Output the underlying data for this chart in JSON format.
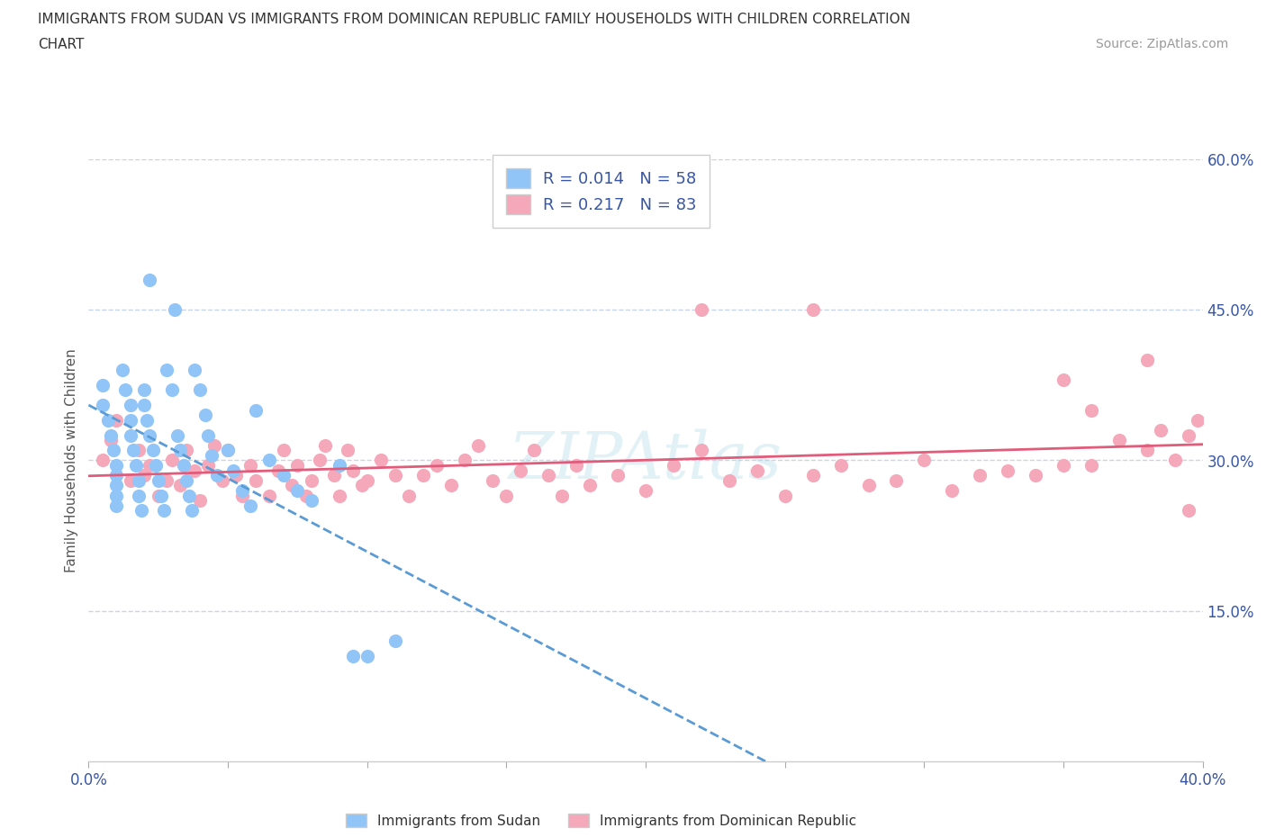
{
  "title_line1": "IMMIGRANTS FROM SUDAN VS IMMIGRANTS FROM DOMINICAN REPUBLIC FAMILY HOUSEHOLDS WITH CHILDREN CORRELATION",
  "title_line2": "CHART",
  "source_text": "Source: ZipAtlas.com",
  "ylabel": "Family Households with Children",
  "xlim": [
    0.0,
    0.4
  ],
  "ylim": [
    0.0,
    0.6
  ],
  "yticks_right": [
    0.0,
    0.15,
    0.3,
    0.45,
    0.6
  ],
  "ytick_labels_right": [
    "",
    "15.0%",
    "30.0%",
    "45.0%",
    "60.0%"
  ],
  "color_sudan": "#92c5f7",
  "color_dr": "#f4a8ba",
  "color_sudan_line": "#5b9bd5",
  "color_dr_line": "#e05c7a",
  "legend_color": "#3956a3",
  "text_color": "#3956a3",
  "R_sudan": 0.014,
  "N_sudan": 58,
  "R_dr": 0.217,
  "N_dr": 83,
  "grid_color": "#c8d4e8",
  "background_color": "#ffffff",
  "watermark": "ZIPAtlas",
  "sudan_x": [
    0.005,
    0.005,
    0.007,
    0.008,
    0.009,
    0.01,
    0.01,
    0.01,
    0.01,
    0.01,
    0.012,
    0.013,
    0.015,
    0.015,
    0.015,
    0.016,
    0.017,
    0.018,
    0.018,
    0.019,
    0.02,
    0.02,
    0.021,
    0.022,
    0.022,
    0.023,
    0.024,
    0.025,
    0.026,
    0.027,
    0.028,
    0.03,
    0.031,
    0.032,
    0.033,
    0.034,
    0.035,
    0.036,
    0.037,
    0.038,
    0.04,
    0.042,
    0.043,
    0.044,
    0.046,
    0.05,
    0.052,
    0.055,
    0.058,
    0.06,
    0.065,
    0.07,
    0.075,
    0.08,
    0.09,
    0.095,
    0.1,
    0.11
  ],
  "sudan_y": [
    0.375,
    0.355,
    0.34,
    0.325,
    0.31,
    0.295,
    0.285,
    0.275,
    0.265,
    0.255,
    0.39,
    0.37,
    0.355,
    0.34,
    0.325,
    0.31,
    0.295,
    0.28,
    0.265,
    0.25,
    0.37,
    0.355,
    0.34,
    0.48,
    0.325,
    0.31,
    0.295,
    0.28,
    0.265,
    0.25,
    0.39,
    0.37,
    0.45,
    0.325,
    0.31,
    0.295,
    0.28,
    0.265,
    0.25,
    0.39,
    0.37,
    0.345,
    0.325,
    0.305,
    0.285,
    0.31,
    0.29,
    0.27,
    0.255,
    0.35,
    0.3,
    0.285,
    0.27,
    0.26,
    0.295,
    0.105,
    0.105,
    0.12
  ],
  "dr_x": [
    0.005,
    0.008,
    0.01,
    0.015,
    0.018,
    0.02,
    0.022,
    0.025,
    0.028,
    0.03,
    0.033,
    0.035,
    0.038,
    0.04,
    0.043,
    0.045,
    0.048,
    0.05,
    0.053,
    0.055,
    0.058,
    0.06,
    0.065,
    0.068,
    0.07,
    0.073,
    0.075,
    0.078,
    0.08,
    0.083,
    0.085,
    0.088,
    0.09,
    0.093,
    0.095,
    0.098,
    0.1,
    0.105,
    0.11,
    0.115,
    0.12,
    0.125,
    0.13,
    0.135,
    0.14,
    0.145,
    0.15,
    0.155,
    0.16,
    0.165,
    0.17,
    0.175,
    0.18,
    0.19,
    0.2,
    0.21,
    0.22,
    0.23,
    0.24,
    0.25,
    0.26,
    0.27,
    0.28,
    0.29,
    0.3,
    0.31,
    0.32,
    0.33,
    0.34,
    0.35,
    0.36,
    0.37,
    0.38,
    0.385,
    0.39,
    0.395,
    0.398,
    0.22,
    0.26,
    0.35,
    0.36,
    0.38,
    0.395
  ],
  "dr_y": [
    0.3,
    0.32,
    0.34,
    0.28,
    0.31,
    0.285,
    0.295,
    0.265,
    0.28,
    0.3,
    0.275,
    0.31,
    0.29,
    0.26,
    0.295,
    0.315,
    0.28,
    0.31,
    0.285,
    0.265,
    0.295,
    0.28,
    0.265,
    0.29,
    0.31,
    0.275,
    0.295,
    0.265,
    0.28,
    0.3,
    0.315,
    0.285,
    0.265,
    0.31,
    0.29,
    0.275,
    0.28,
    0.3,
    0.285,
    0.265,
    0.285,
    0.295,
    0.275,
    0.3,
    0.315,
    0.28,
    0.265,
    0.29,
    0.31,
    0.285,
    0.265,
    0.295,
    0.275,
    0.285,
    0.27,
    0.295,
    0.31,
    0.28,
    0.29,
    0.265,
    0.285,
    0.295,
    0.275,
    0.28,
    0.3,
    0.27,
    0.285,
    0.29,
    0.285,
    0.295,
    0.295,
    0.32,
    0.31,
    0.33,
    0.3,
    0.325,
    0.34,
    0.45,
    0.45,
    0.38,
    0.35,
    0.4,
    0.25
  ]
}
